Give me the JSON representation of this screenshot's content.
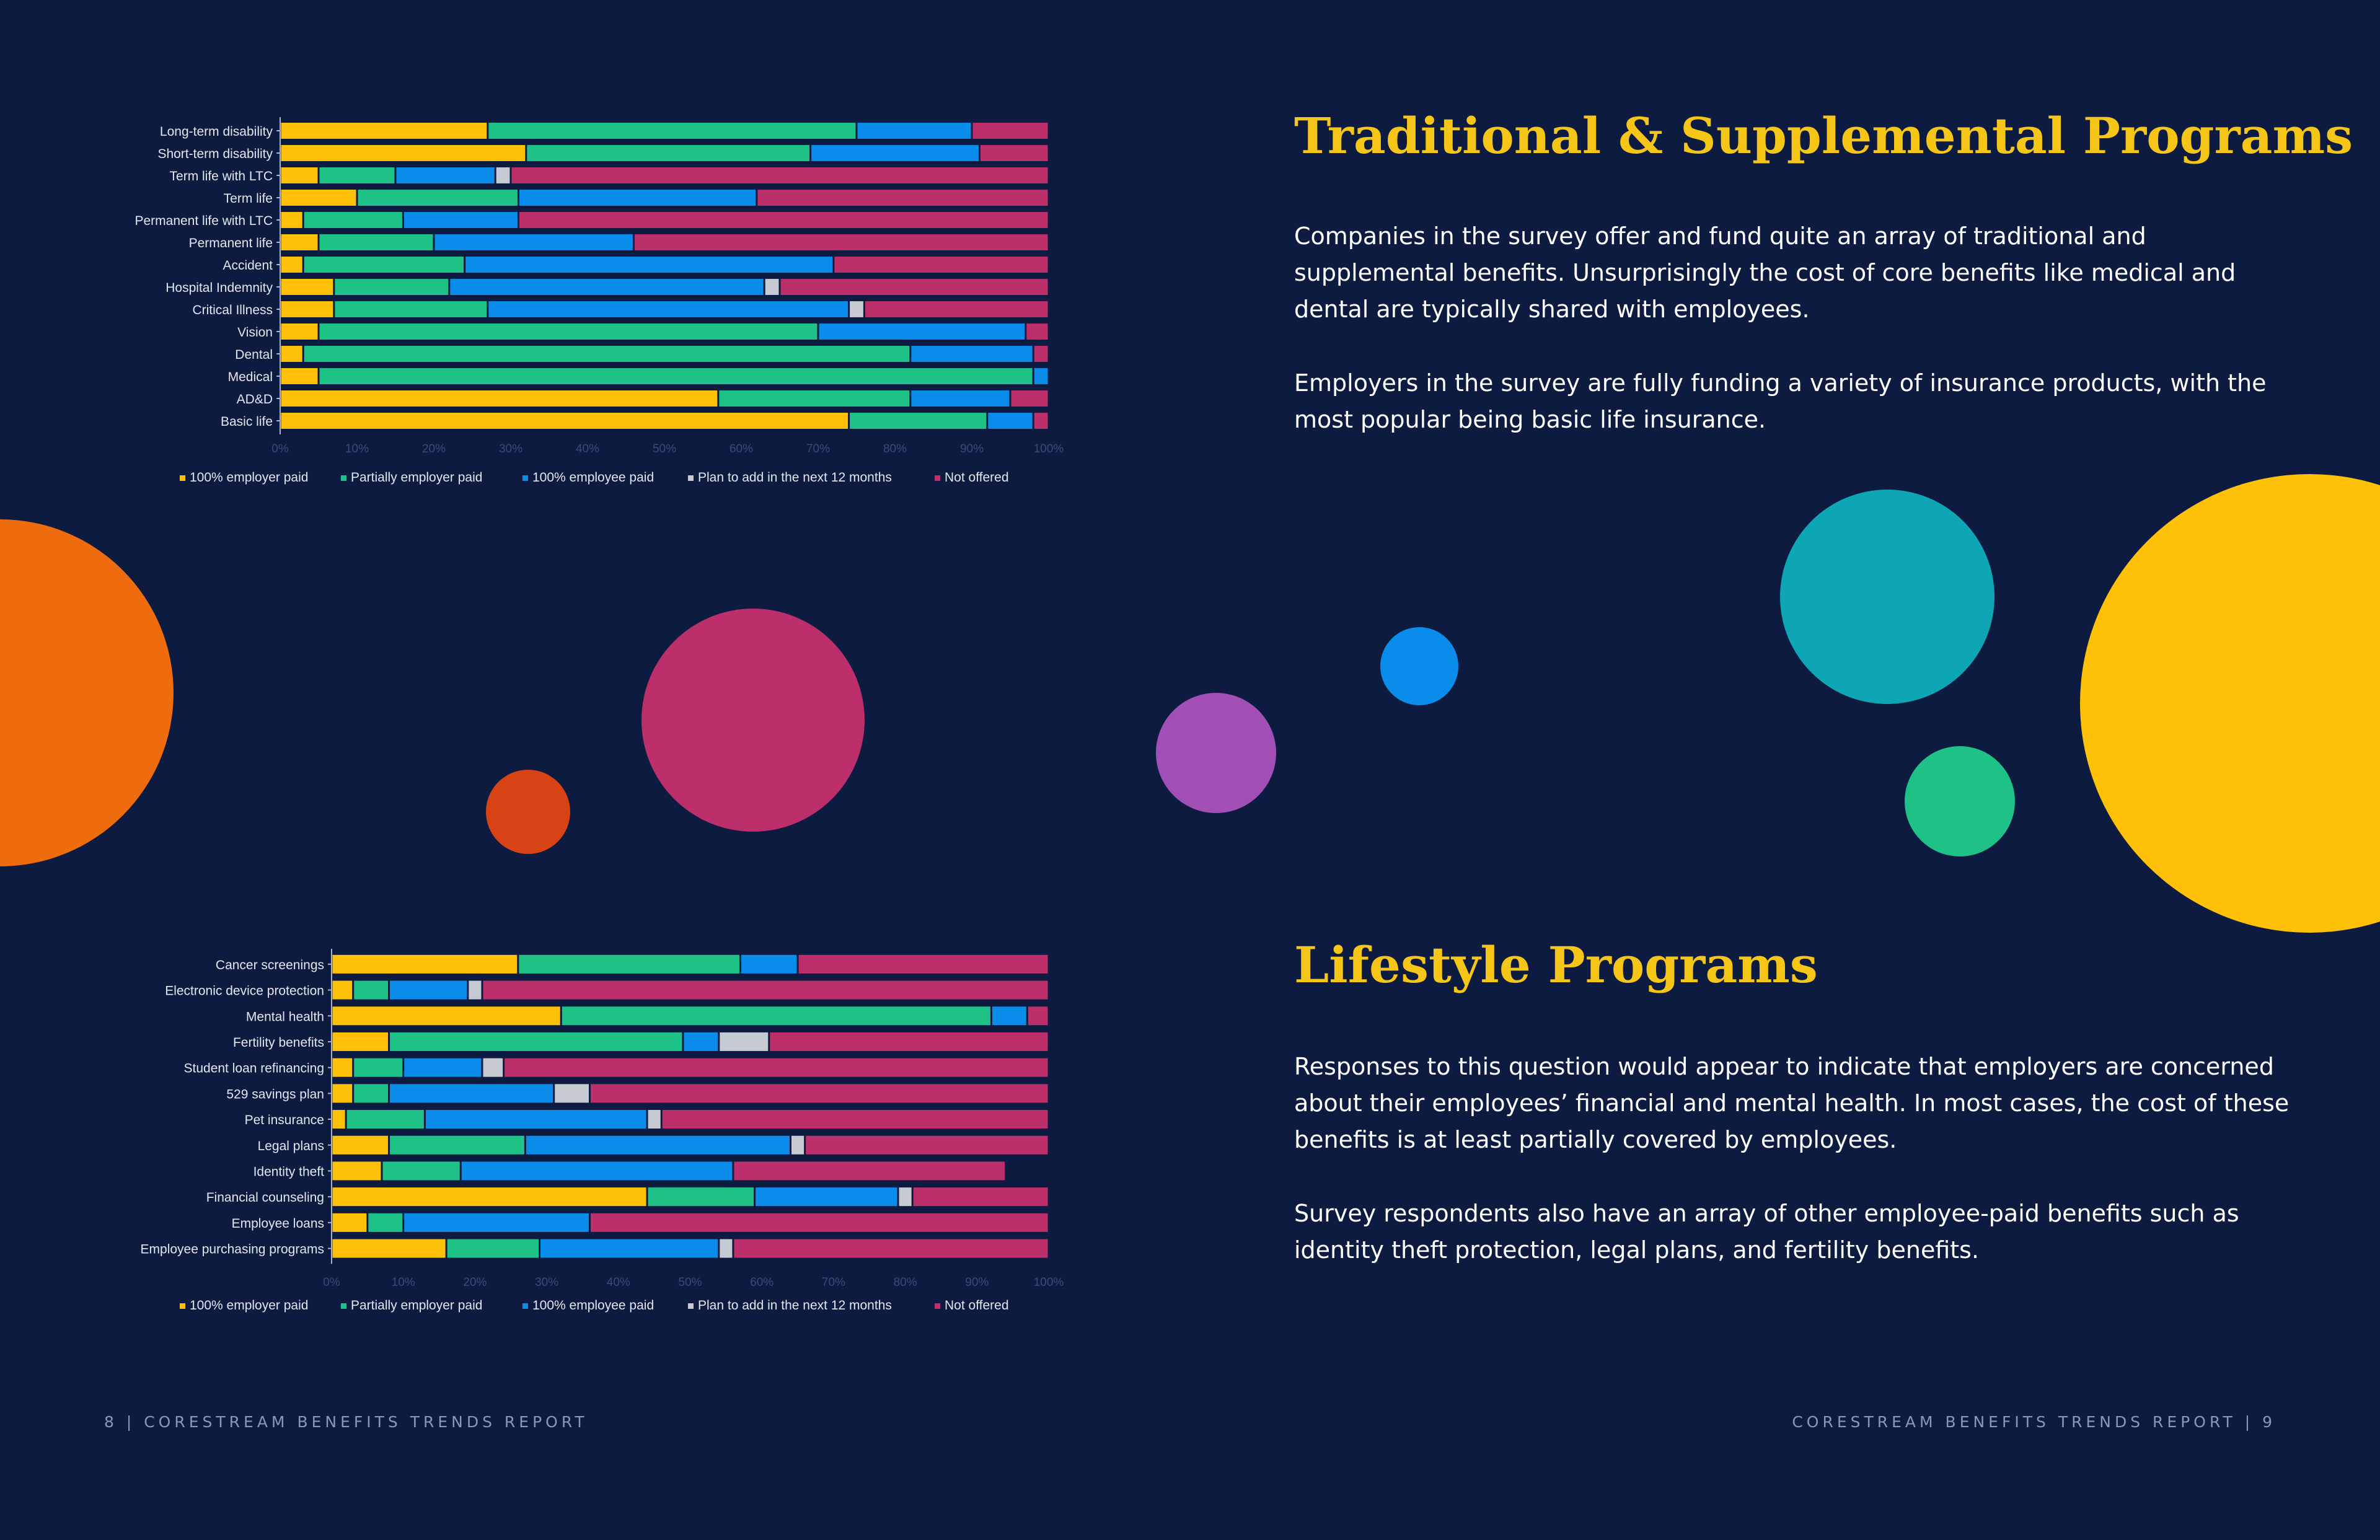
{
  "palette": {
    "background": "#0d1b40",
    "employer_full": "#ffc107",
    "employer_partial": "#1ec286",
    "employee_full": "#0a8cea",
    "plan_to_add": "#c5cad3",
    "not_offered": "#bd2f6b",
    "heading": "#f5c518"
  },
  "sections": {
    "traditional": {
      "heading": "Traditional & Supplemental Programs",
      "paragraph1": "Companies in the survey offer and fund quite an array of traditional and supplemental benefits. Unsurprisingly the cost of core benefits like medical and dental are typically shared with employees.",
      "paragraph2": "Employers in the survey are fully funding a variety of insurance products, with the most popular being basic life insurance."
    },
    "lifestyle": {
      "heading": "Lifestyle Programs",
      "paragraph1": "Responses to this question would appear to indicate that employers are concerned about their employees’ financial and mental health. In most cases, the cost of these benefits is at least partially covered by employees.",
      "paragraph2": "Survey respondents also have an array of other employee-paid benefits such as identity theft protection, legal plans, and fertility benefits."
    }
  },
  "footer": {
    "left": "8  |  CORESTREAM BENEFITS TRENDS REPORT",
    "right": "CORESTREAM BENEFITS TRENDS REPORT  |  9"
  },
  "decorations": [
    {
      "name": "orange-circle",
      "color": "#ee6c0e"
    },
    {
      "name": "red-circle",
      "color": "#d84315"
    },
    {
      "name": "magenta-circle",
      "color": "#bd2f6b"
    },
    {
      "name": "purple-circle",
      "color": "#a24fb5"
    },
    {
      "name": "blue-circle",
      "color": "#0a8cea"
    },
    {
      "name": "teal-circle",
      "color": "#0ea5b5"
    },
    {
      "name": "green-circle",
      "color": "#1ec286"
    },
    {
      "name": "yellow-circle",
      "color": "#ffc107"
    }
  ],
  "chart_data": [
    {
      "type": "bar",
      "orientation": "horizontal",
      "stacked": "100%",
      "title": "",
      "xlabel": "",
      "ylabel": "",
      "xlim": [
        0,
        100
      ],
      "xticks": [
        "0%",
        "10%",
        "20%",
        "30%",
        "40%",
        "50%",
        "60%",
        "70%",
        "80%",
        "90%",
        "100%"
      ],
      "legend_position": "bottom",
      "categories": [
        "Long-term disability",
        "Short-term disability",
        "Term life with LTC",
        "Term life",
        "Permanent life with LTC",
        "Permanent life",
        "Accident",
        "Hospital Indemnity",
        "Critical Illness",
        "Vision",
        "Dental",
        "Medical",
        "AD&D",
        "Basic life"
      ],
      "series": [
        {
          "name": "100% employer paid",
          "values": [
            27,
            32,
            5,
            10,
            3,
            5,
            3,
            7,
            7,
            5,
            3,
            5,
            57,
            74
          ]
        },
        {
          "name": "Partially employer paid",
          "values": [
            48,
            37,
            10,
            21,
            13,
            15,
            21,
            15,
            20,
            65,
            79,
            93,
            25,
            18
          ]
        },
        {
          "name": "100% employee paid",
          "values": [
            15,
            22,
            13,
            31,
            15,
            26,
            48,
            41,
            47,
            27,
            16,
            2,
            13,
            6
          ]
        },
        {
          "name": "Plan to add in the next 12 months",
          "values": [
            0,
            0,
            2,
            0,
            0,
            0,
            0,
            2,
            2,
            0,
            0,
            0,
            0,
            0
          ]
        },
        {
          "name": "Not offered",
          "values": [
            10,
            9,
            70,
            38,
            69,
            54,
            28,
            35,
            24,
            3,
            2,
            0,
            5,
            2
          ]
        }
      ]
    },
    {
      "type": "bar",
      "orientation": "horizontal",
      "stacked": "100%",
      "title": "",
      "xlabel": "",
      "ylabel": "",
      "xlim": [
        0,
        100
      ],
      "xticks": [
        "0%",
        "10%",
        "20%",
        "30%",
        "40%",
        "50%",
        "60%",
        "70%",
        "80%",
        "90%",
        "100%"
      ],
      "legend_position": "bottom",
      "categories": [
        "Cancer screenings",
        "Electronic device protection",
        "Mental health",
        "Fertility benefits",
        "Student loan refinancing",
        "529 savings plan",
        "Pet insurance",
        "Legal plans",
        "Identity theft",
        "Financial counseling",
        "Employee loans",
        "Employee purchasing programs"
      ],
      "series": [
        {
          "name": "100% employer paid",
          "values": [
            26,
            3,
            32,
            8,
            3,
            3,
            2,
            8,
            7,
            44,
            5,
            16
          ]
        },
        {
          "name": "Partially employer paid",
          "values": [
            31,
            5,
            60,
            41,
            7,
            5,
            11,
            19,
            11,
            15,
            5,
            13
          ]
        },
        {
          "name": "100% employee paid",
          "values": [
            8,
            11,
            5,
            5,
            11,
            23,
            31,
            37,
            38,
            20,
            26,
            25
          ]
        },
        {
          "name": "Plan to add in the next 12 months",
          "values": [
            0,
            2,
            0,
            7,
            3,
            5,
            2,
            2,
            0,
            2,
            0,
            2
          ]
        },
        {
          "name": "Not offered",
          "values": [
            35,
            79,
            3,
            39,
            76,
            64,
            54,
            34,
            38,
            19,
            64,
            44
          ]
        }
      ]
    }
  ]
}
